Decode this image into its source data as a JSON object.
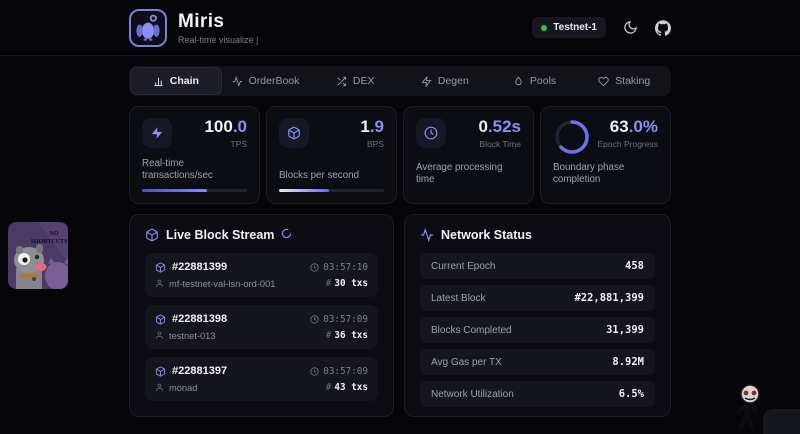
{
  "header": {
    "app_name": "Miris",
    "subtitle": "Real-time visualize |",
    "network_badge": "Testnet-1"
  },
  "tabs": [
    {
      "label": "Chain",
      "active": true
    },
    {
      "label": "OrderBook",
      "active": false
    },
    {
      "label": "DEX",
      "active": false
    },
    {
      "label": "Degen",
      "active": false
    },
    {
      "label": "Pools",
      "active": false
    },
    {
      "label": "Staking",
      "active": false
    }
  ],
  "stat_cards": [
    {
      "value_int": "100",
      "value_dec": ".0",
      "unit": "TPS",
      "description": "Real-time transactions/sec",
      "progress": 62
    },
    {
      "value_int": "1",
      "value_dec": ".9",
      "unit": "BPS",
      "description": "Blocks per second",
      "progress": 48
    },
    {
      "value_int": "0",
      "value_dec": ".52s",
      "unit": "Block Time",
      "description": "Average processing time"
    },
    {
      "value_int": "63",
      "value_dec": ".0%",
      "unit": "Epoch Progress",
      "description": "Boundary phase completion",
      "ring_progress": 63
    }
  ],
  "block_stream": {
    "title": "Live Block Stream",
    "blocks": [
      {
        "number": "#22881399",
        "time": "03:57:10",
        "validator": "mf-testnet-val-lsn-ord-001",
        "txs": "30 txs"
      },
      {
        "number": "#22881398",
        "time": "03:57:09",
        "validator": "testnet-013",
        "txs": "36 txs"
      },
      {
        "number": "#22881397",
        "time": "03:57:09",
        "validator": "monad",
        "txs": "43 txs"
      }
    ]
  },
  "network_status": {
    "title": "Network Status",
    "rows": [
      {
        "label": "Current Epoch",
        "value": "458"
      },
      {
        "label": "Latest Block",
        "value": "#22,881,399"
      },
      {
        "label": "Blocks Completed",
        "value": "31,399"
      },
      {
        "label": "Avg Gas per TX",
        "value": "8.92M"
      },
      {
        "label": "Network Utilization",
        "value": "6.5%"
      }
    ]
  },
  "sticker": {
    "line1": "NO",
    "line2": "SHORTCUTS"
  },
  "glyphs": {
    "hash": "#"
  },
  "colors": {
    "accent": "#818cf8",
    "green": "#22c55e"
  }
}
